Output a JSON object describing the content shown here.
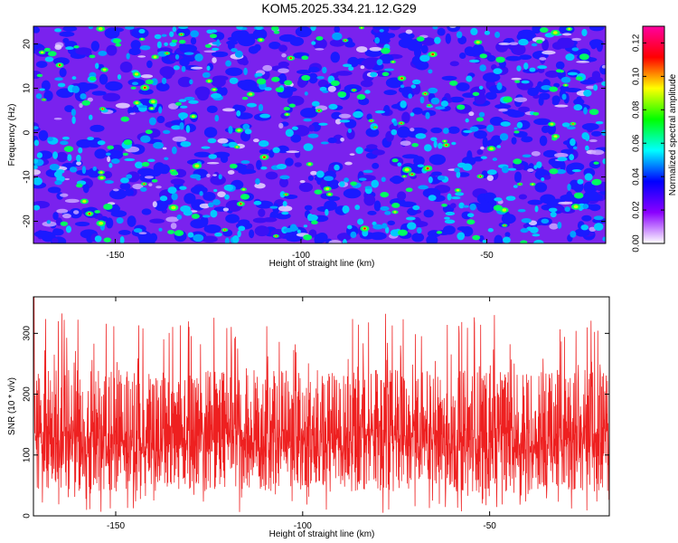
{
  "title": "KOM5.2025.334.21.12.G29",
  "chart_data": [
    {
      "type": "heatmap",
      "title": "KOM5.2025.334.21.12.G29",
      "xlabel": "Height of straight line (km)",
      "ylabel": "Frequency (Hz)",
      "xlim": [
        -172,
        -18
      ],
      "ylim": [
        -25,
        24
      ],
      "xticks": [
        -150,
        -100,
        -50
      ],
      "yticks": [
        20,
        10,
        0,
        -10,
        -20
      ],
      "colorbar": {
        "label": "Normalized spectral amplitude",
        "range": [
          0.0,
          0.13
        ],
        "ticks": [
          "0.00",
          "0.02",
          "0.04",
          "0.06",
          "0.08",
          "0.10",
          "0.12"
        ],
        "colors": [
          "#ffffff",
          "#8a00ff",
          "#0000ff",
          "#00ffff",
          "#00ff00",
          "#ffff00",
          "#ff0000",
          "#ff00a0"
        ]
      },
      "grid": false
    },
    {
      "type": "line",
      "xlabel": "Height of straight line (km)",
      "ylabel": "SNR (10 * v/v)",
      "xlim": [
        -172,
        -18
      ],
      "ylim": [
        0,
        360
      ],
      "xticks": [
        -150,
        -100,
        -50
      ],
      "yticks": [
        0,
        100,
        200,
        300
      ],
      "series": [
        {
          "name": "SNR",
          "color": "#ee2020"
        }
      ],
      "grid": false
    }
  ]
}
